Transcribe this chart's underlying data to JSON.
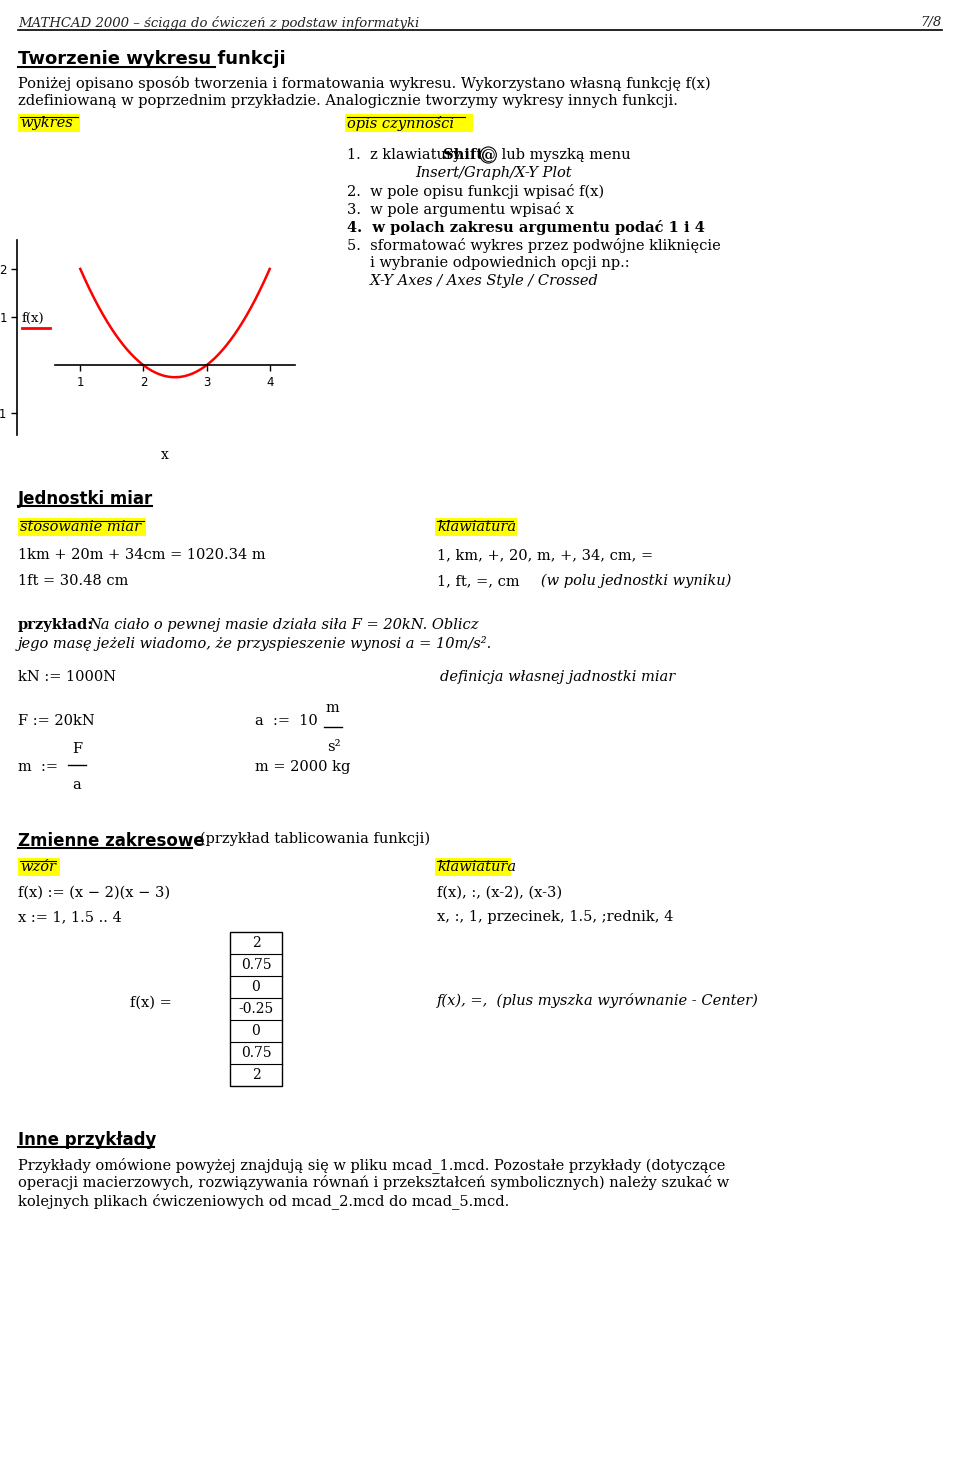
{
  "page_header": "MATHCAD 2000 – ściąga do ćwiczeń z podstaw informatyki",
  "page_number": "7/8",
  "bg_color": "#ffffff",
  "text_color": "#000000",
  "highlight_yellow": "#ffff00",
  "section1_title": "Tworzenie wykresu funkcji",
  "section1_para1": "Poniżej opisano sposób tworzenia i formatowania wykresu. Wykorzystano własną funkcję f(x)",
  "section1_para2": "zdefiniowaną w poprzednim przykładzie. Analogicznie tworzymy wykresy innych funkcji.",
  "col1_label": "wykres",
  "col2_label": "opis czynności",
  "fx_label": "f(x)",
  "x_label": "x",
  "section2_title": "Jednostki miar",
  "col3_label": "stosowanie miar",
  "col4_label": "klawiatura",
  "row1_left": "1km + 20m + 34cm = 1020.34 m",
  "row1_right": "1, km, +, 20, m, +, 34, cm, =",
  "row2_left": "1ft = 30.48 cm",
  "row2_right": "1, ft, =, cm   (w polu jednostki wyniku)",
  "kN_def": "kN := 1000N",
  "kN_comment": "definicja własnej jadnostki miar",
  "F_def": "F := 20kN",
  "m_result": "m = 2000 kg",
  "section3_title": "Zmienne zakresowe",
  "section3_subtitle": "(przykład tablicowania funkcji)",
  "col5_label": "wzór",
  "col6_label": "klawiatura",
  "fx_assign": "f(x) := (x − 2)(x − 3)",
  "fx_kb": "f(x), :, (x-2), (x-3)",
  "x_assign": "x := 1, 1.5 .. 4",
  "x_kb": "x, :, 1, przecinek, 1.5, ;rednik, 4",
  "table_values": [
    2,
    0.75,
    0,
    -0.25,
    0,
    0.75,
    2
  ],
  "section4_title": "Inne przykłady",
  "section4_text1": "Przykłady omówione powyżej znajdują się w pliku mcad_1.mcd. Pozostałe przykłady (dotyczące",
  "section4_text2": "operacji macierzowych, rozwiązywania równań i przekształceń symbolicznych) należy szukać w",
  "section4_text3": "kolejnych plikach ćwiczeniowych od mcad_2.mcd do mcad_5.mcd."
}
